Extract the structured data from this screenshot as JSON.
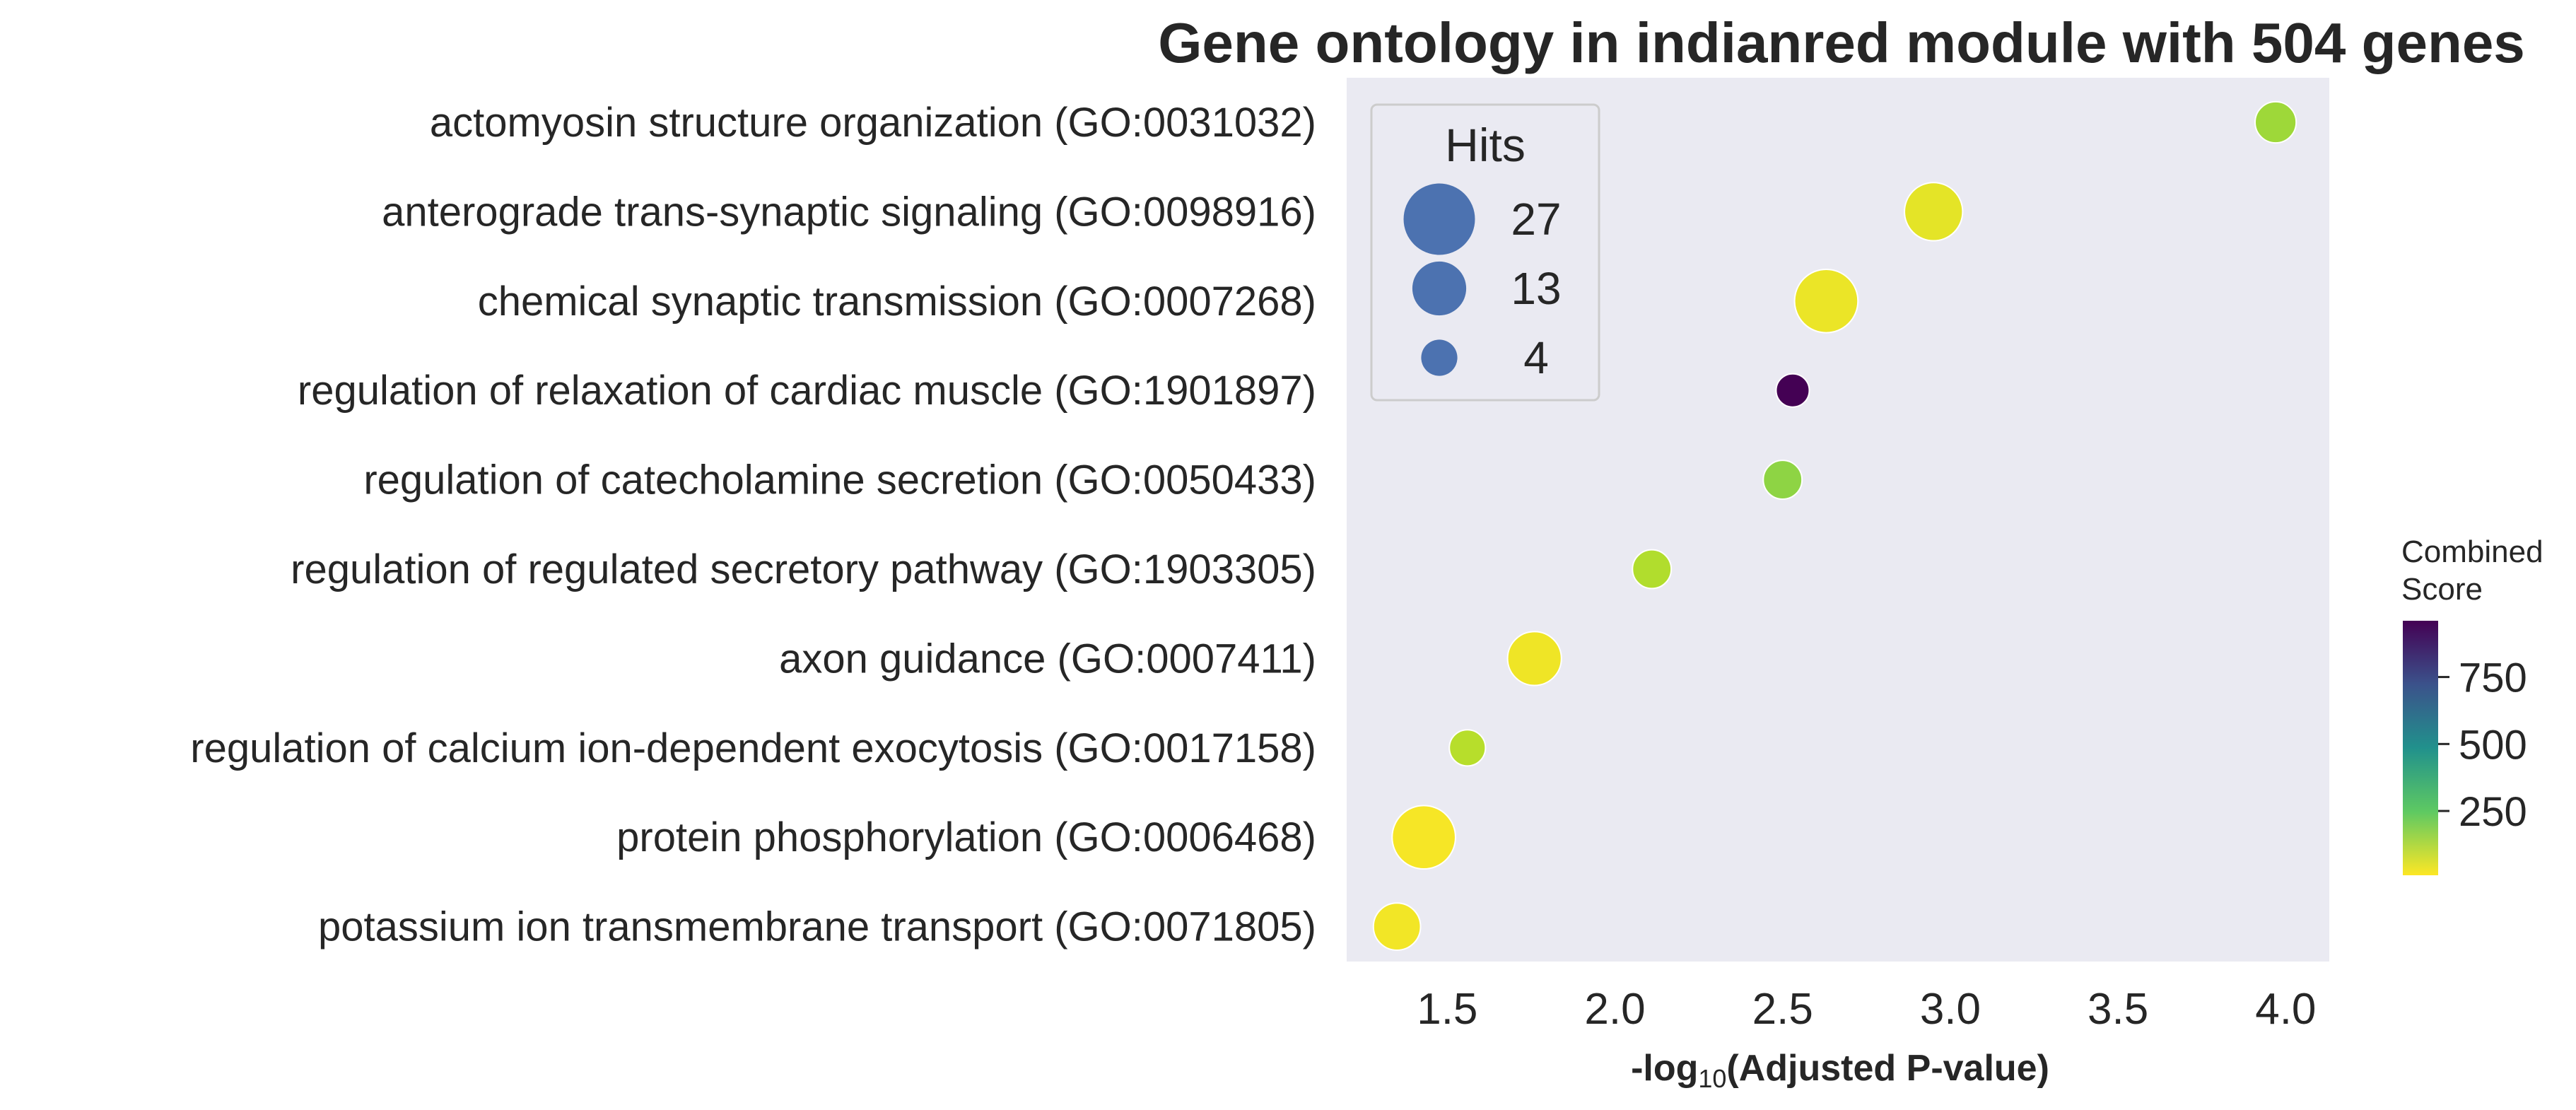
{
  "chart_data": {
    "type": "scatter",
    "title": "Gene ontology in indianred module with 504 genes",
    "xlabel_prefix": "-log",
    "xlabel_sub": "10",
    "xlabel_suffix": "(Adjusted P-value)",
    "xlim": [
      1.2,
      4.13
    ],
    "xticks": [
      1.5,
      2.0,
      2.5,
      3.0,
      3.5,
      4.0
    ],
    "xtick_labels": [
      "1.5",
      "2.0",
      "2.5",
      "3.0",
      "3.5",
      "4.0"
    ],
    "grid": false,
    "categories": [
      "actomyosin structure organization (GO:0031032)",
      "anterograde trans-synaptic signaling (GO:0098916)",
      "chemical synaptic transmission (GO:0007268)",
      "regulation of relaxation of cardiac muscle (GO:1901897)",
      "regulation of catecholamine secretion (GO:0050433)",
      "regulation of regulated secretory pathway (GO:1903305)",
      "axon guidance (GO:0007411)",
      "regulation of calcium ion-dependent exocytosis (GO:0017158)",
      "protein phosphorylation (GO:0006468)",
      "potassium ion transmembrane transport (GO:0071805)"
    ],
    "points": [
      {
        "x": 3.97,
        "hits": 6,
        "score": 210
      },
      {
        "x": 2.95,
        "hits": 16,
        "score": 65
      },
      {
        "x": 2.63,
        "hits": 20,
        "score": 50
      },
      {
        "x": 2.53,
        "hits": 3,
        "score": 960
      },
      {
        "x": 2.5,
        "hits": 5,
        "score": 240
      },
      {
        "x": 2.11,
        "hits": 5,
        "score": 175
      },
      {
        "x": 1.76,
        "hits": 13,
        "score": 40
      },
      {
        "x": 1.56,
        "hits": 4,
        "score": 165
      },
      {
        "x": 1.43,
        "hits": 20,
        "score": 25
      },
      {
        "x": 1.35,
        "hits": 9,
        "score": 35
      }
    ],
    "size_legend": {
      "title": "Hits",
      "placement": "upper-left",
      "entries": [
        {
          "label": "27",
          "hits": 27
        },
        {
          "label": "13",
          "hits": 13
        },
        {
          "label": "4",
          "hits": 4
        }
      ],
      "marker_color": "#4c72b0"
    },
    "colorbar": {
      "title_line1": "Combined",
      "title_line2": "Score",
      "colormap": "viridis_r",
      "range": [
        10,
        960
      ],
      "ticks": [
        250,
        500,
        750
      ],
      "tick_labels": [
        "250",
        "500",
        "750"
      ]
    },
    "colors": {
      "plot_background": "#eaeaf2",
      "text": "#262626"
    }
  }
}
